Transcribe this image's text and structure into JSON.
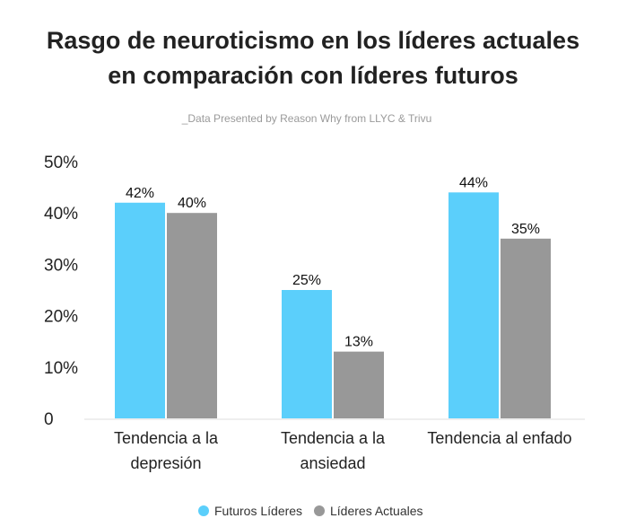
{
  "chart_data": {
    "type": "bar",
    "title_lines": [
      "Rasgo de neuroticismo en los líderes actuales",
      "en comparación con líderes futuros"
    ],
    "subtitle": "_Data Presented by Reason Why from LLYC & Trivu",
    "categories": [
      [
        "Tendencia a la",
        "depresión"
      ],
      [
        "Tendencia a la",
        "ansiedad"
      ],
      [
        "Tendencia al enfado"
      ]
    ],
    "series": [
      {
        "name": "Futuros Líderes",
        "color": "#5BCFFB",
        "values": [
          42,
          25,
          44
        ]
      },
      {
        "name": "Líderes Actuales",
        "color": "#989898",
        "values": [
          40,
          13,
          35
        ]
      }
    ],
    "value_suffix": "%",
    "ylim": [
      0,
      50
    ],
    "yticks": [
      {
        "value": 0,
        "label": "0"
      },
      {
        "value": 10,
        "label": "10%"
      },
      {
        "value": 20,
        "label": "20%"
      },
      {
        "value": 30,
        "label": "30%"
      },
      {
        "value": 40,
        "label": "40%"
      },
      {
        "value": 50,
        "label": "50%"
      }
    ],
    "grid": false,
    "legend_position": "bottom-center"
  }
}
